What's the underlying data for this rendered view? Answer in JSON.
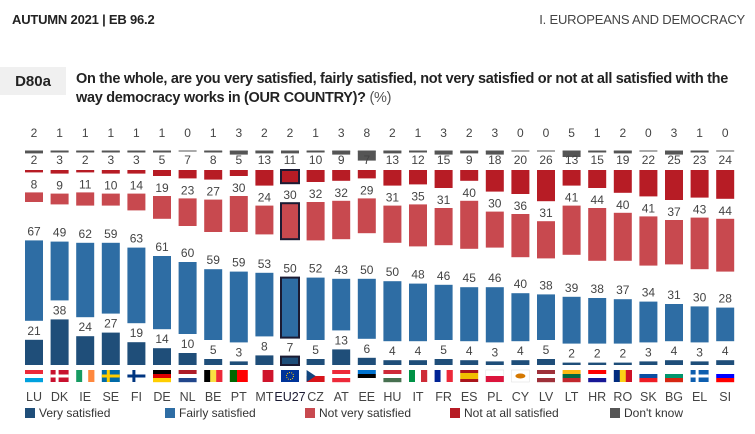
{
  "header": {
    "left": "AUTUMN 2021 | EB 96.2",
    "right": "I. EUROPEANS AND DEMOCRACY"
  },
  "question": {
    "code": "D80a",
    "text": "On the whole, are you very satisfied, fairly satisfied, not very satisfied or not at all satisfied with the way democracy works in (OUR COUNTRY)?",
    "unit": "(%)"
  },
  "colors": {
    "very_satisfied": "#1f4e79",
    "fairly_satisfied": "#2e6da4",
    "not_very_satisfied": "#c8494f",
    "not_at_all_satisfied": "#b71c25",
    "dont_know": "#555555",
    "highlight_border": "#1b1b33"
  },
  "chart_data": {
    "type": "bar",
    "stacked": "split-columns",
    "title": "D80a On the whole, are you very satisfied, fairly satisfied, not very satisfied or not at all satisfied with the way democracy works in (OUR COUNTRY)? (%)",
    "categories": [
      "LU",
      "DK",
      "IE",
      "SE",
      "FI",
      "DE",
      "NL",
      "BE",
      "PT",
      "MT",
      "EU27",
      "CZ",
      "AT",
      "EE",
      "HU",
      "IT",
      "FR",
      "ES",
      "PL",
      "CY",
      "LV",
      "LT",
      "HR",
      "RO",
      "SK",
      "BG",
      "EL",
      "SI"
    ],
    "highlight": "EU27",
    "series": [
      {
        "name": "Very satisfied",
        "key": "very_satisfied",
        "values": [
          21,
          38,
          24,
          27,
          19,
          14,
          10,
          5,
          3,
          8,
          7,
          5,
          13,
          6,
          4,
          4,
          5,
          4,
          3,
          4,
          5,
          2,
          2,
          2,
          3,
          4,
          3,
          4
        ]
      },
      {
        "name": "Fairly satisfied",
        "key": "fairly_satisfied",
        "values": [
          67,
          49,
          62,
          59,
          63,
          61,
          60,
          59,
          59,
          53,
          50,
          52,
          43,
          50,
          50,
          48,
          46,
          45,
          46,
          40,
          38,
          39,
          38,
          37,
          34,
          31,
          30,
          28
        ]
      },
      {
        "name": "Not very satisfied",
        "key": "not_very_satisfied",
        "values": [
          8,
          9,
          11,
          10,
          14,
          19,
          23,
          27,
          30,
          24,
          30,
          32,
          32,
          29,
          31,
          35,
          31,
          40,
          30,
          36,
          31,
          41,
          44,
          40,
          41,
          37,
          43,
          44
        ]
      },
      {
        "name": "Not at all satisfied",
        "key": "not_at_all_satisfied",
        "values": [
          2,
          3,
          2,
          3,
          3,
          5,
          7,
          8,
          5,
          13,
          11,
          10,
          9,
          7,
          13,
          12,
          15,
          9,
          18,
          20,
          26,
          13,
          15,
          19,
          22,
          25,
          23,
          24
        ]
      },
      {
        "name": "Don't know",
        "key": "dont_know",
        "values": [
          2,
          1,
          1,
          1,
          1,
          1,
          0,
          1,
          3,
          2,
          2,
          1,
          3,
          8,
          2,
          1,
          3,
          2,
          3,
          0,
          0,
          5,
          1,
          2,
          0,
          3,
          1,
          0
        ]
      }
    ],
    "legend": [
      "Very satisfied",
      "Fairly satisfied",
      "Not very satisfied",
      "Not at all satisfied",
      "Don't know"
    ],
    "legend_position": "bottom",
    "xlabel": "",
    "ylabel": "",
    "grid": false
  },
  "flags": {
    "LU": [
      "#ed2939",
      "#ffffff",
      "#00a1de"
    ],
    "DK": [
      "#c8102e",
      "#ffffff"
    ],
    "IE": [
      "#169b62",
      "#ffffff",
      "#ff883e"
    ],
    "SE": [
      "#006aa7",
      "#fecc00"
    ],
    "FI": [
      "#ffffff",
      "#003580"
    ],
    "DE": [
      "#000000",
      "#dd0000",
      "#ffce00"
    ],
    "NL": [
      "#ae1c28",
      "#ffffff",
      "#21468b"
    ],
    "BE": [
      "#000000",
      "#fae042",
      "#ed2939"
    ],
    "PT": [
      "#006600",
      "#ff0000"
    ],
    "MT": [
      "#ffffff",
      "#cf142b"
    ],
    "EU27": [
      "#003399",
      "#ffcc00"
    ],
    "CZ": [
      "#ffffff",
      "#d7141a",
      "#11457e"
    ],
    "AT": [
      "#ed2939",
      "#ffffff",
      "#ed2939"
    ],
    "EE": [
      "#0072ce",
      "#000000",
      "#ffffff"
    ],
    "HU": [
      "#ce2939",
      "#ffffff",
      "#477050"
    ],
    "IT": [
      "#009246",
      "#ffffff",
      "#ce2b37"
    ],
    "FR": [
      "#002395",
      "#ffffff",
      "#ed2939"
    ],
    "ES": [
      "#aa151b",
      "#f1bf00",
      "#aa151b"
    ],
    "PL": [
      "#ffffff",
      "#dc143c"
    ],
    "CY": [
      "#ffffff",
      "#d57800"
    ],
    "LV": [
      "#9e3039",
      "#ffffff",
      "#9e3039"
    ],
    "LT": [
      "#fdb913",
      "#006a44",
      "#c1272d"
    ],
    "HR": [
      "#ff0000",
      "#ffffff",
      "#171796"
    ],
    "RO": [
      "#002b7f",
      "#fcd116",
      "#ce1126"
    ],
    "SK": [
      "#ffffff",
      "#0b4ea2",
      "#ee1c25"
    ],
    "BG": [
      "#ffffff",
      "#00966e",
      "#d62612"
    ],
    "EL": [
      "#0d5eaf",
      "#ffffff"
    ],
    "SI": [
      "#ffffff",
      "#0000ff",
      "#ff0000"
    ]
  }
}
